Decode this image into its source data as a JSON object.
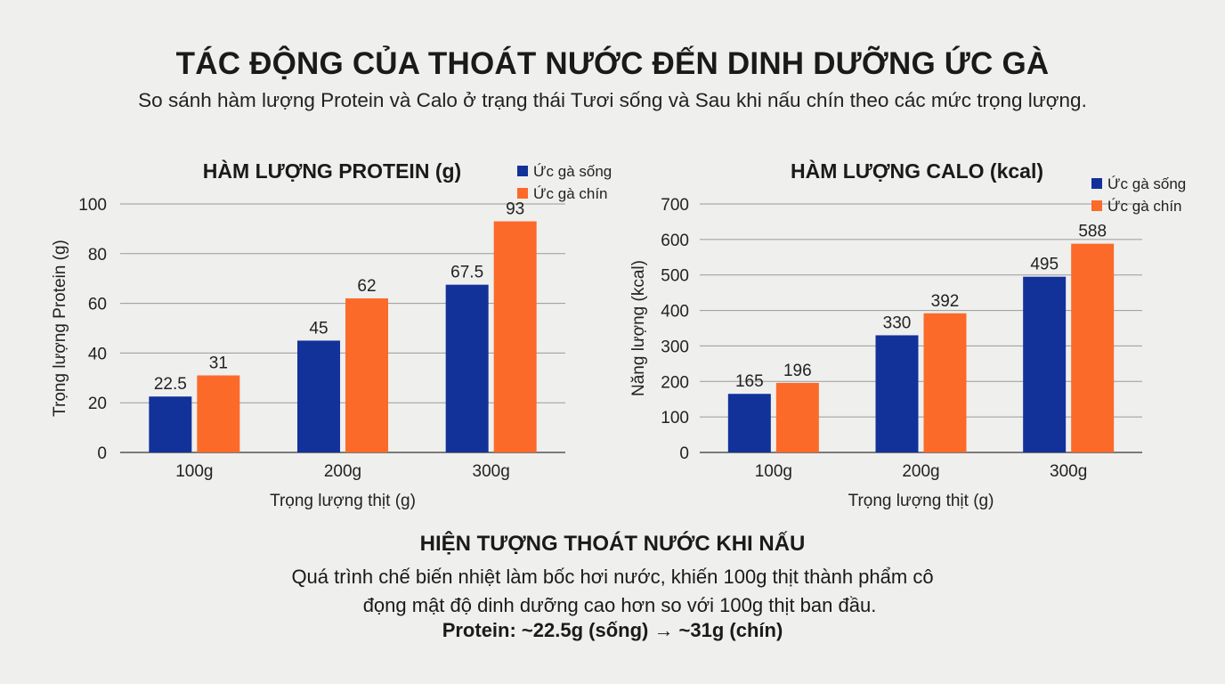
{
  "header": {
    "title": "TÁC ĐỘNG CỦA THOÁT NƯỚC ĐẾN DINH DƯỠNG ỨC GÀ",
    "subtitle": "So sánh hàm lượng Protein và Calo ở trạng thái Tươi sống và Sau khi nấu chín theo các mức trọng lượng."
  },
  "colors": {
    "raw": "#12329a",
    "cooked": "#fc6a2a",
    "grid": "#9a9a9a"
  },
  "chart_data": [
    {
      "type": "bar",
      "title": "HÀM LƯỢNG PROTEIN (g)",
      "xlabel": "Trọng lượng thịt (g)",
      "ylabel": "Trọng lượng Protein (g)",
      "categories": [
        "100g",
        "200g",
        "300g"
      ],
      "ylim": [
        0,
        100
      ],
      "yticks": [
        0,
        20,
        40,
        60,
        80,
        100
      ],
      "legend_position": "top-right",
      "series": [
        {
          "name": "Ức gà sống",
          "values": [
            22.5,
            45,
            67.5
          ],
          "labels": [
            "22.5",
            "45",
            "67.5"
          ]
        },
        {
          "name": "Ức gà chín",
          "values": [
            31,
            62,
            93
          ],
          "labels": [
            "31",
            "62",
            "93"
          ]
        }
      ]
    },
    {
      "type": "bar",
      "title": "HÀM LƯỢNG CALO (kcal)",
      "xlabel": "Trọng lượng thịt (g)",
      "ylabel": "Năng lượng (kcal)",
      "categories": [
        "100g",
        "200g",
        "300g"
      ],
      "ylim": [
        0,
        700
      ],
      "yticks": [
        0,
        100,
        200,
        300,
        400,
        500,
        600,
        700
      ],
      "legend_position": "top-right",
      "series": [
        {
          "name": "Ức gà sống",
          "values": [
            165,
            330,
            495
          ],
          "labels": [
            "165",
            "330",
            "495"
          ]
        },
        {
          "name": "Ức gà chín",
          "values": [
            196,
            392,
            588
          ],
          "labels": [
            "196",
            "392",
            "588"
          ]
        }
      ]
    }
  ],
  "note": {
    "title": "HIỆN TƯỢNG THOÁT NƯỚC KHI NẤU",
    "line1": "Quá trình chế biến nhiệt làm bốc hơi nước, khiến 100g thịt thành phẩm cô",
    "line2": "đọng mật độ dinh dưỡng cao hơn so với 100g thịt ban đầu.",
    "highlight": "Protein: ~22.5g (sống) → ~31g (chín)"
  }
}
